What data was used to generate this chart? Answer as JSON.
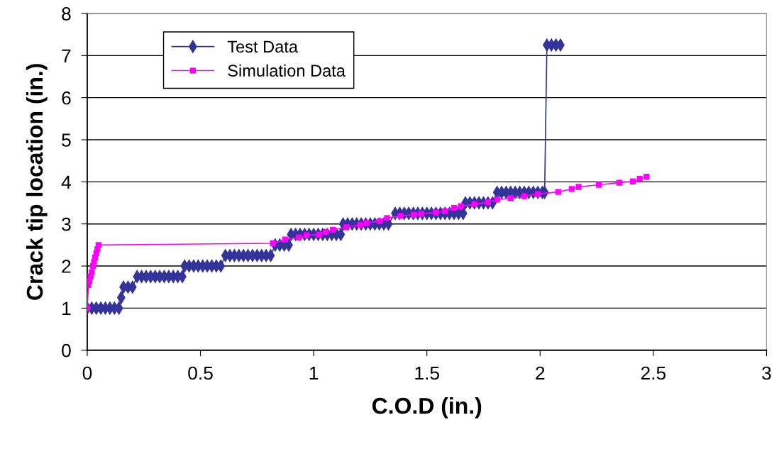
{
  "chart_data": {
    "type": "line",
    "xlabel": "C.O.D (in.)",
    "ylabel": "Crack tip location (in.)",
    "xlim": [
      0,
      3
    ],
    "xticks": [
      0,
      0.5,
      1,
      1.5,
      2,
      2.5,
      3
    ],
    "ylim": [
      0,
      8
    ],
    "yticks": [
      0,
      1,
      2,
      3,
      4,
      5,
      6,
      7,
      8
    ],
    "grid": "y",
    "legend": "top left",
    "series": [
      {
        "name": "Test Data",
        "color": "#333399",
        "marker": "diamond",
        "x": [
          0,
          0.02,
          0.04,
          0.06,
          0.08,
          0.1,
          0.12,
          0.14,
          0.15,
          0.16,
          0.18,
          0.2,
          0.22,
          0.24,
          0.26,
          0.28,
          0.3,
          0.32,
          0.34,
          0.36,
          0.38,
          0.4,
          0.42,
          0.43,
          0.45,
          0.47,
          0.49,
          0.51,
          0.53,
          0.55,
          0.57,
          0.59,
          0.61,
          0.63,
          0.65,
          0.67,
          0.69,
          0.71,
          0.73,
          0.75,
          0.77,
          0.79,
          0.81,
          0.83,
          0.85,
          0.87,
          0.89,
          0.9,
          0.92,
          0.94,
          0.96,
          0.98,
          1.0,
          1.02,
          1.04,
          1.06,
          1.08,
          1.1,
          1.12,
          1.13,
          1.15,
          1.17,
          1.19,
          1.21,
          1.23,
          1.25,
          1.27,
          1.29,
          1.31,
          1.33,
          1.36,
          1.38,
          1.4,
          1.42,
          1.44,
          1.46,
          1.48,
          1.5,
          1.52,
          1.54,
          1.56,
          1.58,
          1.6,
          1.62,
          1.64,
          1.66,
          1.67,
          1.69,
          1.71,
          1.73,
          1.75,
          1.77,
          1.79,
          1.81,
          1.83,
          1.85,
          1.87,
          1.89,
          1.91,
          1.93,
          1.95,
          1.97,
          1.99,
          2.01,
          2.02,
          2.03,
          2.05,
          2.07,
          2.09
        ],
        "values": [
          1,
          1,
          1,
          1,
          1,
          1,
          1,
          1,
          1.25,
          1.5,
          1.5,
          1.5,
          1.75,
          1.75,
          1.75,
          1.75,
          1.75,
          1.75,
          1.75,
          1.75,
          1.75,
          1.75,
          1.75,
          2,
          2,
          2,
          2,
          2,
          2,
          2,
          2,
          2,
          2.25,
          2.25,
          2.25,
          2.25,
          2.25,
          2.25,
          2.25,
          2.25,
          2.25,
          2.25,
          2.25,
          2.5,
          2.5,
          2.5,
          2.5,
          2.75,
          2.75,
          2.75,
          2.75,
          2.75,
          2.75,
          2.75,
          2.75,
          2.75,
          2.75,
          2.75,
          2.75,
          3,
          3,
          3,
          3,
          3,
          3,
          3,
          3,
          3,
          3,
          3,
          3.25,
          3.25,
          3.25,
          3.25,
          3.25,
          3.25,
          3.25,
          3.25,
          3.25,
          3.25,
          3.25,
          3.25,
          3.25,
          3.25,
          3.25,
          3.25,
          3.5,
          3.5,
          3.5,
          3.5,
          3.5,
          3.5,
          3.5,
          3.75,
          3.75,
          3.75,
          3.75,
          3.75,
          3.75,
          3.75,
          3.75,
          3.75,
          3.75,
          3.75,
          3.75,
          7.25,
          7.25,
          7.25,
          7.25
        ]
      },
      {
        "name": "Simulation Data",
        "color": "#ff00ff",
        "marker": "square",
        "x": [
          0,
          0.005,
          0.01,
          0.015,
          0.02,
          0.025,
          0.03,
          0.035,
          0.04,
          0.045,
          0.05,
          0.82,
          0.874,
          0.934,
          0.969,
          1.025,
          1.054,
          1.085,
          1.145,
          1.205,
          1.233,
          1.292,
          1.324,
          1.384,
          1.443,
          1.475,
          1.54,
          1.58,
          1.62,
          1.65,
          1.71,
          1.77,
          1.81,
          1.87,
          1.93,
          1.99,
          2.08,
          2.14,
          2.17,
          2.26,
          2.35,
          2.41,
          2.44,
          2.47
        ],
        "values": [
          1,
          1.55,
          1.65,
          1.75,
          1.85,
          2.0,
          2.1,
          2.2,
          2.3,
          2.4,
          2.5,
          2.54,
          2.63,
          2.68,
          2.73,
          2.75,
          2.81,
          2.86,
          2.92,
          2.98,
          3.02,
          3.07,
          3.14,
          3.19,
          3.22,
          3.24,
          3.27,
          3.3,
          3.38,
          3.42,
          3.47,
          3.52,
          3.58,
          3.61,
          3.66,
          3.71,
          3.76,
          3.83,
          3.88,
          3.93,
          3.98,
          4.01,
          4.07,
          4.12
        ]
      }
    ]
  }
}
